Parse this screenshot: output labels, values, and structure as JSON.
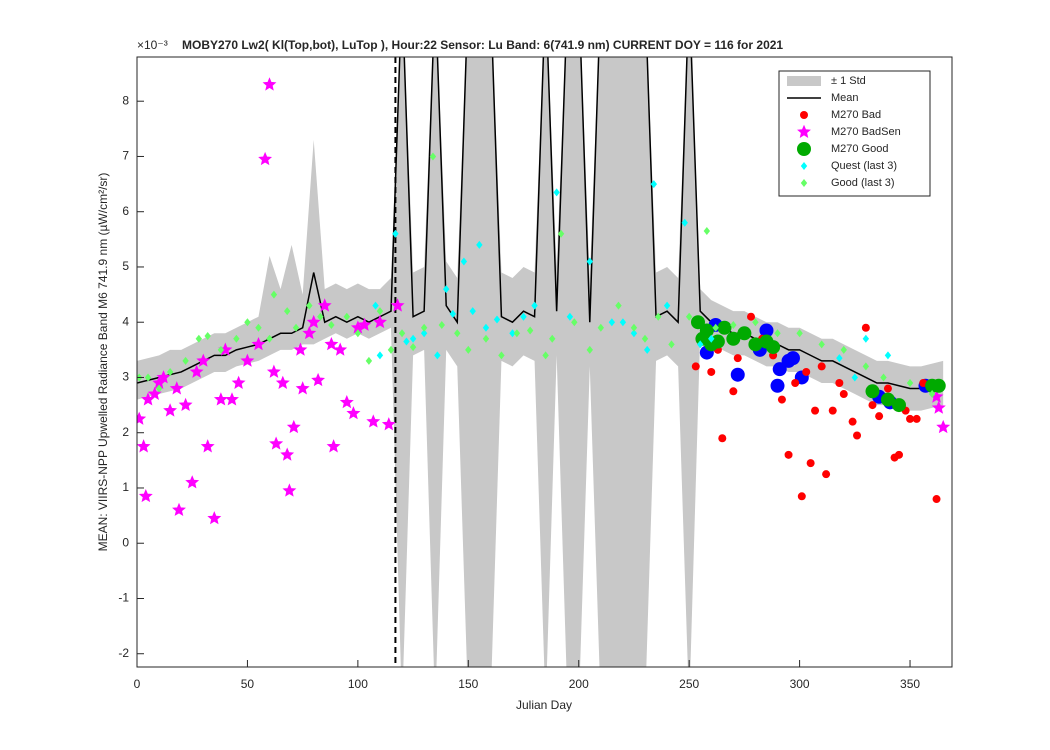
{
  "chart_data": {
    "type": "scatter",
    "title": "MOBY270   Lw2( Kl(Top,bot), LuTop ),   Hour:22 Sensor: Lu Band: 6(741.9 nm)   CURRENT DOY = 116 for 2021",
    "y_exponent": "×10⁻³",
    "xlabel": "Julian Day",
    "ylabel": "MEAN: VIIRS-NPP Upwelled Radiance Band M6 741.9 nm (µW/cm²/sr)",
    "xlim": [
      0,
      369
    ],
    "ylim": [
      -2.24,
      8.8
    ],
    "xticks": [
      0,
      50,
      100,
      150,
      200,
      250,
      300,
      350
    ],
    "yticks": [
      -2,
      -1,
      0,
      1,
      2,
      3,
      4,
      5,
      6,
      7,
      8
    ],
    "vline": 117,
    "legend": "upper right",
    "band": {
      "name": "± 1 Std",
      "color": "#c8c8c8",
      "x": [
        0,
        5,
        10,
        15,
        20,
        25,
        30,
        35,
        40,
        45,
        50,
        55,
        60,
        65,
        70,
        75,
        80,
        85,
        90,
        95,
        100,
        105,
        110,
        115,
        120,
        125,
        130,
        135,
        140,
        145,
        150,
        155,
        160,
        165,
        170,
        175,
        180,
        185,
        190,
        195,
        200,
        205,
        210,
        215,
        220,
        225,
        230,
        235,
        240,
        245,
        250,
        255,
        260,
        265,
        270,
        275,
        280,
        285,
        290,
        295,
        300,
        305,
        310,
        315,
        320,
        325,
        330,
        335,
        340,
        345,
        350,
        355,
        360,
        365
      ],
      "upper": [
        3.3,
        3.35,
        3.4,
        3.5,
        3.5,
        3.6,
        3.7,
        3.8,
        3.8,
        3.9,
        4.0,
        4.1,
        5.2,
        4.6,
        5.4,
        4.5,
        7.3,
        4.6,
        4.7,
        4.6,
        4.7,
        4.6,
        4.6,
        4.8,
        10,
        4.9,
        5.0,
        10,
        5.1,
        4.8,
        10,
        10,
        10,
        4.9,
        4.8,
        5.0,
        4.9,
        10,
        5.0,
        10,
        10,
        4.8,
        10,
        10,
        10,
        10,
        10,
        4.9,
        5.0,
        4.8,
        10,
        4.6,
        4.4,
        4.3,
        4.2,
        4.2,
        4.1,
        4.0,
        4.0,
        3.9,
        3.9,
        3.8,
        3.7,
        3.7,
        3.6,
        3.5,
        3.4,
        3.3,
        3.3,
        3.25,
        3.2,
        3.2,
        3.25,
        3.3
      ],
      "lower": [
        2.6,
        2.65,
        2.7,
        2.75,
        2.8,
        2.9,
        3.0,
        3.1,
        3.1,
        3.2,
        3.25,
        3.3,
        3.4,
        3.5,
        3.5,
        3.6,
        3.6,
        3.7,
        3.8,
        3.7,
        3.8,
        3.7,
        3.8,
        3.9,
        -3,
        3.4,
        3.5,
        -3,
        3.5,
        3.2,
        -3,
        -3,
        -3,
        3.3,
        3.2,
        3.4,
        3.3,
        -3,
        3.4,
        -3,
        -3,
        3.2,
        -3,
        -3,
        -3,
        -3,
        -3,
        3.3,
        3.4,
        3.2,
        -3,
        3.8,
        3.6,
        3.5,
        3.4,
        3.4,
        3.3,
        3.2,
        3.2,
        3.1,
        3.1,
        3.0,
        2.9,
        2.9,
        2.8,
        2.7,
        2.6,
        2.5,
        2.5,
        2.45,
        2.4,
        2.4,
        2.45,
        2.5
      ]
    },
    "mean": {
      "name": "Mean",
      "color": "#000000",
      "values": [
        2.9,
        2.95,
        3.0,
        3.05,
        3.1,
        3.2,
        3.3,
        3.4,
        3.4,
        3.5,
        3.55,
        3.6,
        3.7,
        3.8,
        3.8,
        3.9,
        4.9,
        4.0,
        4.1,
        4.0,
        4.1,
        4.0,
        4.1,
        4.2,
        10,
        4.1,
        4.2,
        10,
        4.3,
        4.0,
        10,
        10,
        10,
        4.1,
        4.0,
        4.2,
        4.1,
        10,
        4.2,
        10,
        10,
        4.0,
        10,
        10,
        10,
        10,
        10,
        4.1,
        4.2,
        4.0,
        10,
        4.2,
        4.0,
        3.9,
        3.8,
        3.8,
        3.7,
        3.6,
        3.6,
        3.5,
        3.5,
        3.4,
        3.3,
        3.3,
        3.2,
        3.1,
        3.0,
        2.9,
        2.9,
        2.85,
        2.8,
        2.8,
        2.85,
        2.9
      ]
    },
    "series": [
      {
        "color": "#0000ff",
        "marker": "circle",
        "size": 7,
        "x": [
          258,
          262,
          272,
          282,
          285,
          290,
          291,
          295,
          297,
          301,
          336,
          341,
          357
        ],
        "values": [
          3.45,
          3.95,
          3.05,
          3.5,
          3.85,
          2.85,
          3.15,
          3.3,
          3.35,
          3.0,
          2.65,
          2.55,
          2.85
        ]
      },
      {
        "name": "M270 Bad",
        "color": "#ff0000",
        "marker": "circle",
        "size": 4,
        "x": [
          253,
          260,
          263,
          265,
          270,
          272,
          278,
          283,
          288,
          292,
          295,
          298,
          301,
          303,
          305,
          307,
          310,
          312,
          315,
          318,
          320,
          324,
          326,
          330,
          333,
          336,
          340,
          343,
          345,
          348,
          350,
          353,
          356,
          362
        ],
        "values": [
          3.2,
          3.1,
          3.5,
          1.9,
          2.75,
          3.35,
          4.1,
          3.7,
          3.4,
          2.6,
          1.6,
          2.9,
          0.85,
          3.1,
          1.45,
          2.4,
          3.2,
          1.25,
          2.4,
          2.9,
          2.7,
          2.2,
          1.95,
          3.9,
          2.5,
          2.3,
          2.8,
          1.55,
          1.6,
          2.4,
          2.25,
          2.25,
          2.9,
          0.8
        ]
      },
      {
        "name": "M270 BadSen",
        "color": "#ff00ff",
        "marker": "star",
        "size": 6,
        "x": [
          1,
          3,
          4,
          5,
          8,
          10,
          12,
          15,
          18,
          19,
          22,
          25,
          27,
          30,
          32,
          35,
          38,
          40,
          43,
          46,
          50,
          55,
          58,
          60,
          62,
          63,
          66,
          68,
          69,
          71,
          74,
          75,
          78,
          80,
          82,
          85,
          88,
          89,
          92,
          95,
          98,
          100,
          103,
          107,
          110,
          114,
          118,
          362,
          363,
          365
        ],
        "values": [
          2.25,
          1.75,
          0.85,
          2.6,
          2.7,
          2.9,
          3.0,
          2.4,
          2.8,
          0.6,
          2.5,
          1.1,
          3.1,
          3.3,
          1.75,
          0.45,
          2.6,
          3.5,
          2.6,
          2.9,
          3.3,
          3.6,
          6.95,
          8.3,
          3.1,
          1.8,
          2.9,
          1.6,
          0.95,
          2.1,
          3.5,
          2.8,
          3.8,
          4.0,
          2.95,
          4.3,
          3.6,
          1.75,
          3.5,
          2.55,
          2.35,
          3.9,
          3.95,
          2.2,
          4.0,
          2.15,
          4.3,
          2.65,
          2.45,
          2.1
        ]
      },
      {
        "name": "M270 Good",
        "color": "#00aa00",
        "marker": "circle",
        "size": 7,
        "x": [
          254,
          256,
          258,
          260,
          263,
          266,
          270,
          275,
          280,
          285,
          288,
          333,
          340,
          345,
          360,
          363
        ],
        "values": [
          4.0,
          3.7,
          3.85,
          3.6,
          3.65,
          3.9,
          3.7,
          3.8,
          3.6,
          3.65,
          3.55,
          2.75,
          2.6,
          2.5,
          2.85,
          2.85
        ]
      },
      {
        "name": "Quest (last 3)",
        "color": "#00ffff",
        "marker": "diamond",
        "size": 4,
        "x": [
          108,
          110,
          117,
          122,
          125,
          130,
          136,
          140,
          143,
          148,
          152,
          155,
          158,
          163,
          170,
          175,
          180,
          190,
          196,
          205,
          215,
          220,
          225,
          231,
          234,
          240,
          248,
          255,
          260,
          318,
          325,
          330,
          340
        ],
        "values": [
          4.3,
          3.4,
          5.6,
          3.65,
          3.7,
          3.8,
          3.4,
          4.6,
          4.15,
          5.1,
          4.2,
          5.4,
          3.9,
          4.05,
          3.8,
          4.1,
          4.3,
          6.35,
          4.1,
          5.1,
          4.0,
          4.0,
          3.8,
          3.5,
          6.5,
          4.3,
          5.8,
          3.6,
          3.7,
          3.35,
          3.0,
          3.7,
          3.4
        ]
      },
      {
        "name": "Good (last 3)",
        "color": "#66ff66",
        "marker": "diamond",
        "size": 4,
        "x": [
          1,
          5,
          10,
          15,
          22,
          28,
          32,
          38,
          45,
          50,
          55,
          60,
          62,
          68,
          72,
          78,
          83,
          88,
          95,
          100,
          105,
          110,
          115,
          120,
          125,
          130,
          134,
          138,
          145,
          150,
          158,
          165,
          172,
          178,
          185,
          188,
          192,
          198,
          205,
          210,
          218,
          225,
          230,
          236,
          242,
          250,
          258,
          262,
          270,
          280,
          290,
          300,
          310,
          320,
          330,
          338,
          350,
          360
        ],
        "values": [
          3.0,
          3.0,
          2.8,
          3.1,
          3.3,
          3.7,
          3.75,
          3.5,
          3.7,
          4.0,
          3.9,
          3.7,
          4.5,
          4.2,
          3.9,
          4.3,
          4.1,
          3.95,
          4.1,
          3.8,
          3.3,
          4.2,
          3.5,
          3.8,
          3.55,
          3.9,
          7.0,
          3.95,
          3.8,
          3.5,
          3.7,
          3.4,
          3.8,
          3.85,
          3.4,
          3.7,
          5.6,
          4.0,
          3.5,
          3.9,
          4.3,
          3.9,
          3.7,
          4.1,
          3.6,
          4.1,
          5.65,
          3.9,
          3.95,
          4.0,
          3.8,
          3.8,
          3.6,
          3.5,
          3.2,
          3.0,
          2.9,
          2.7
        ]
      }
    ]
  }
}
